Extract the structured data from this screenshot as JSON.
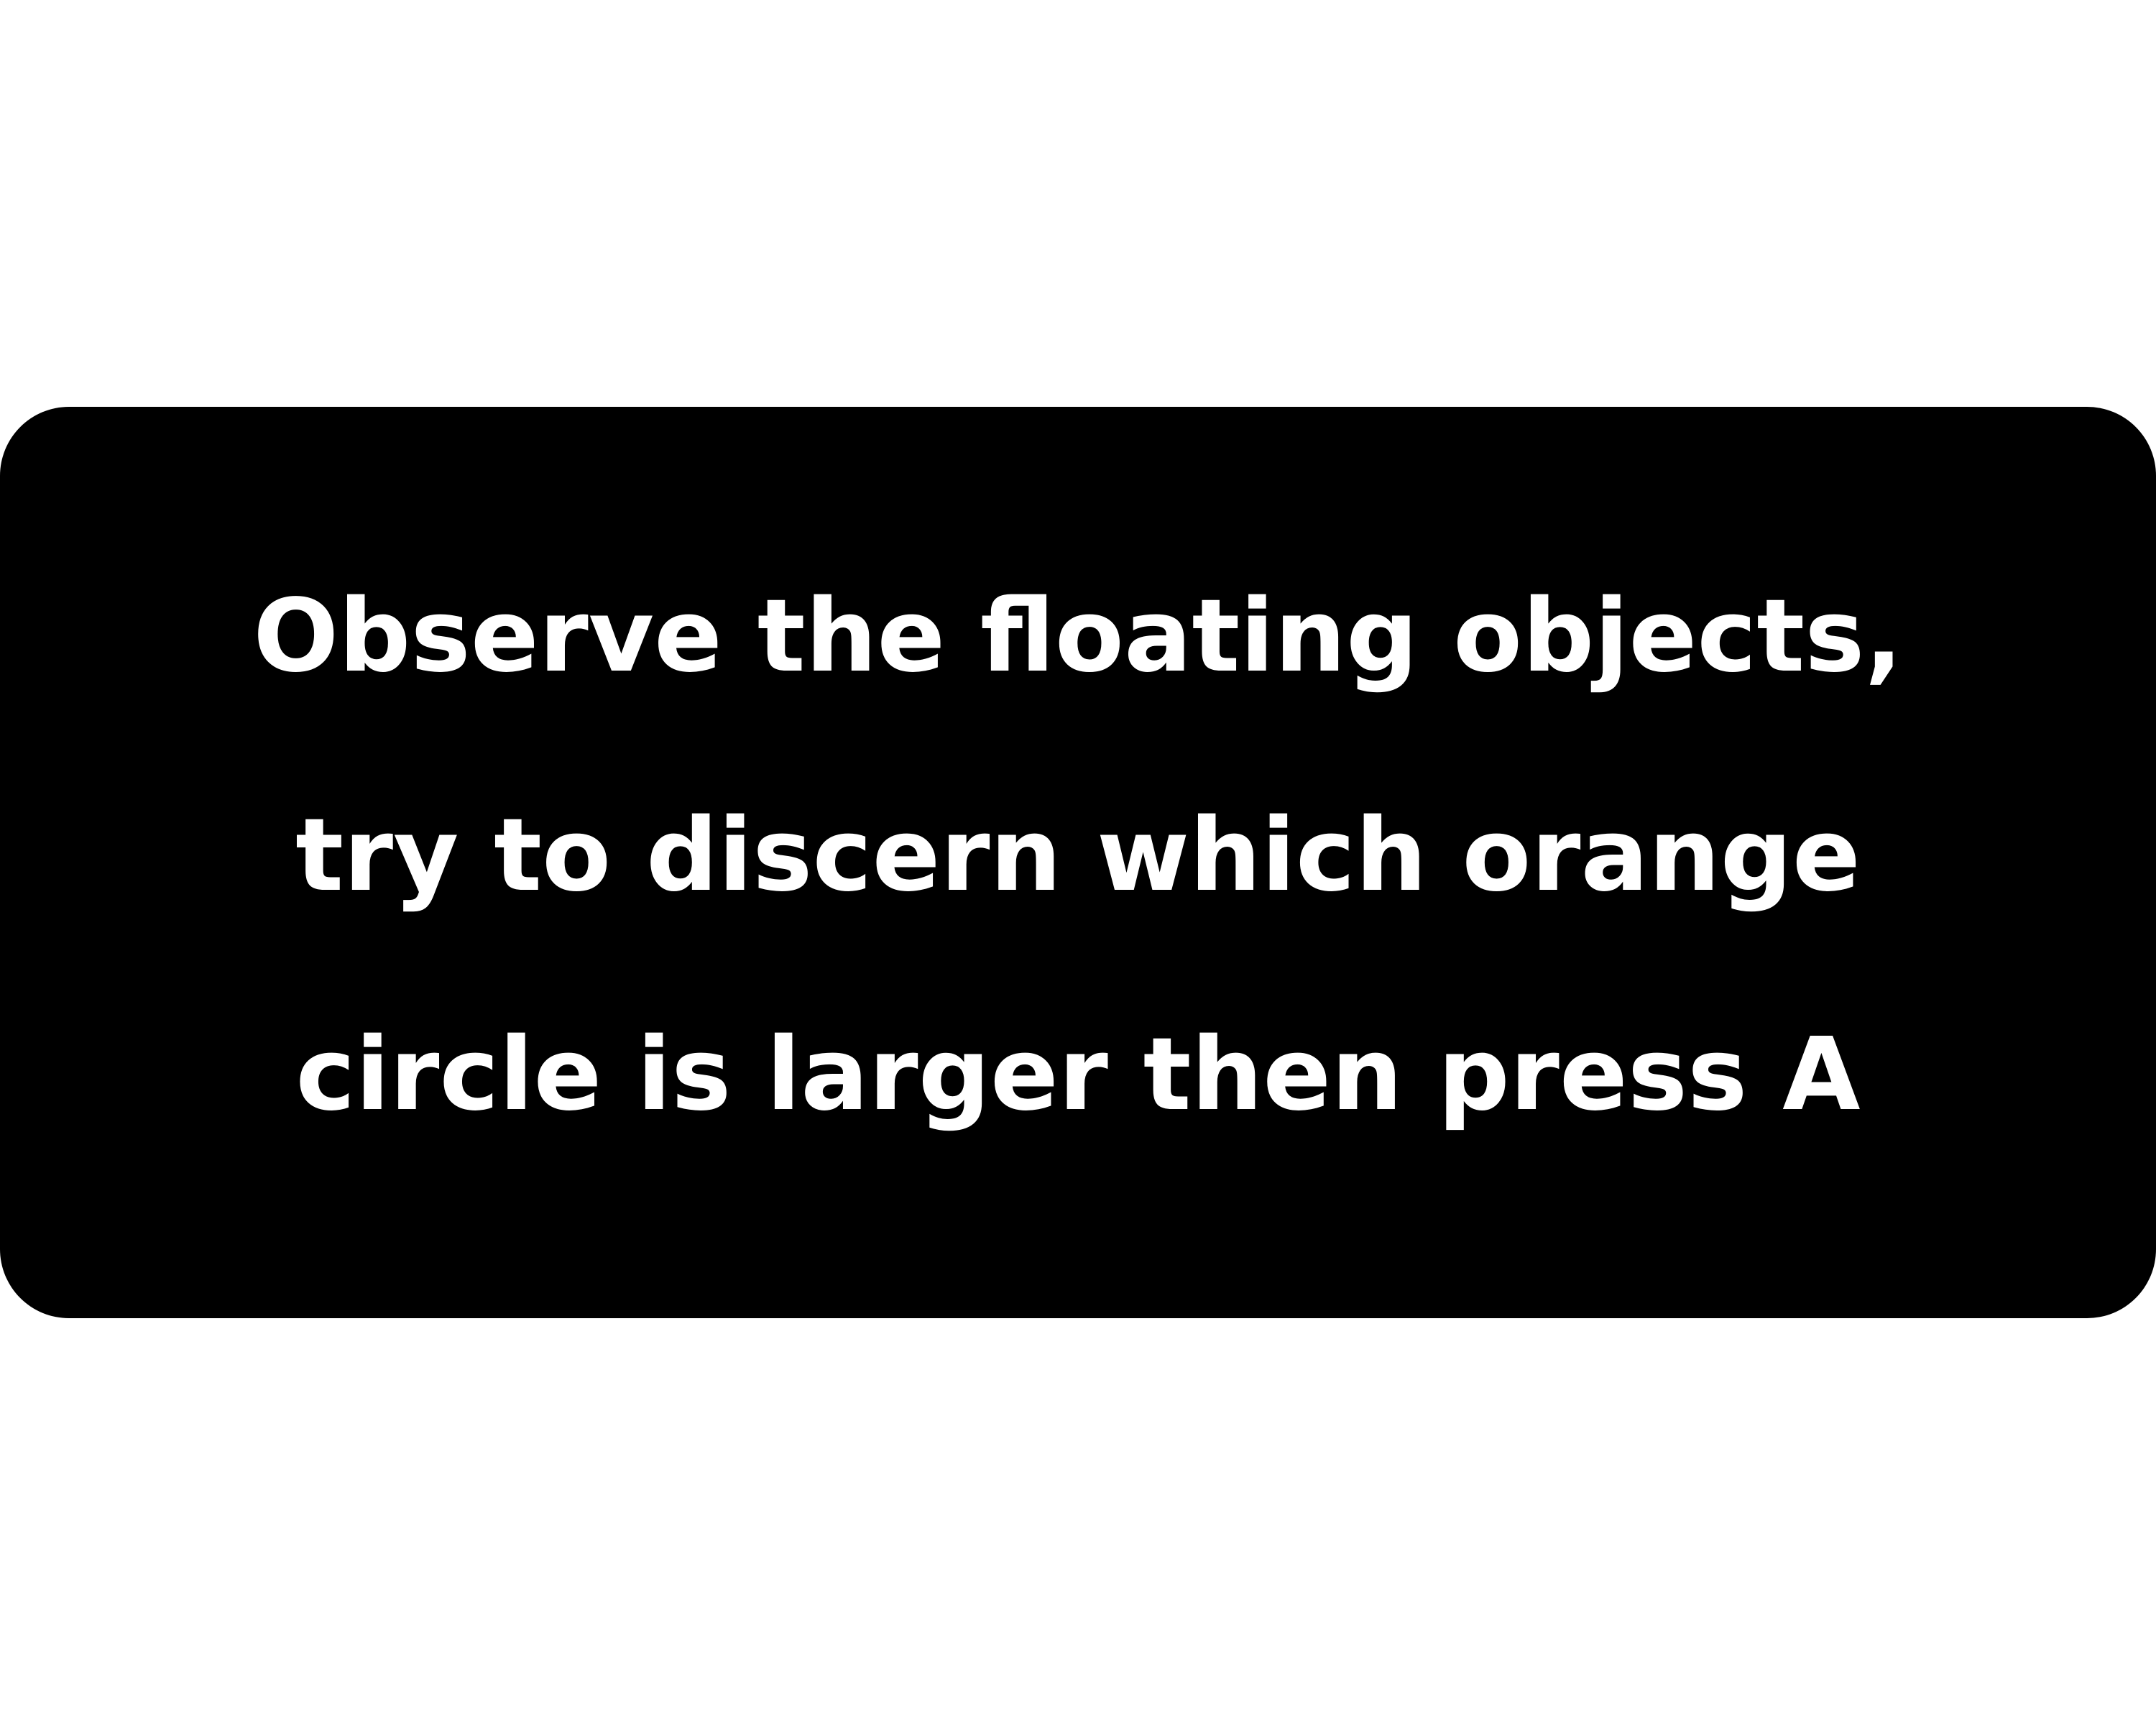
{
  "instruction": {
    "lines": [
      "Observe the floating objects,",
      "try to discern which orange",
      "circle is larger then press A"
    ]
  },
  "colors": {
    "background": "#ffffff",
    "panel": "#000000",
    "text": "#ffffff"
  }
}
